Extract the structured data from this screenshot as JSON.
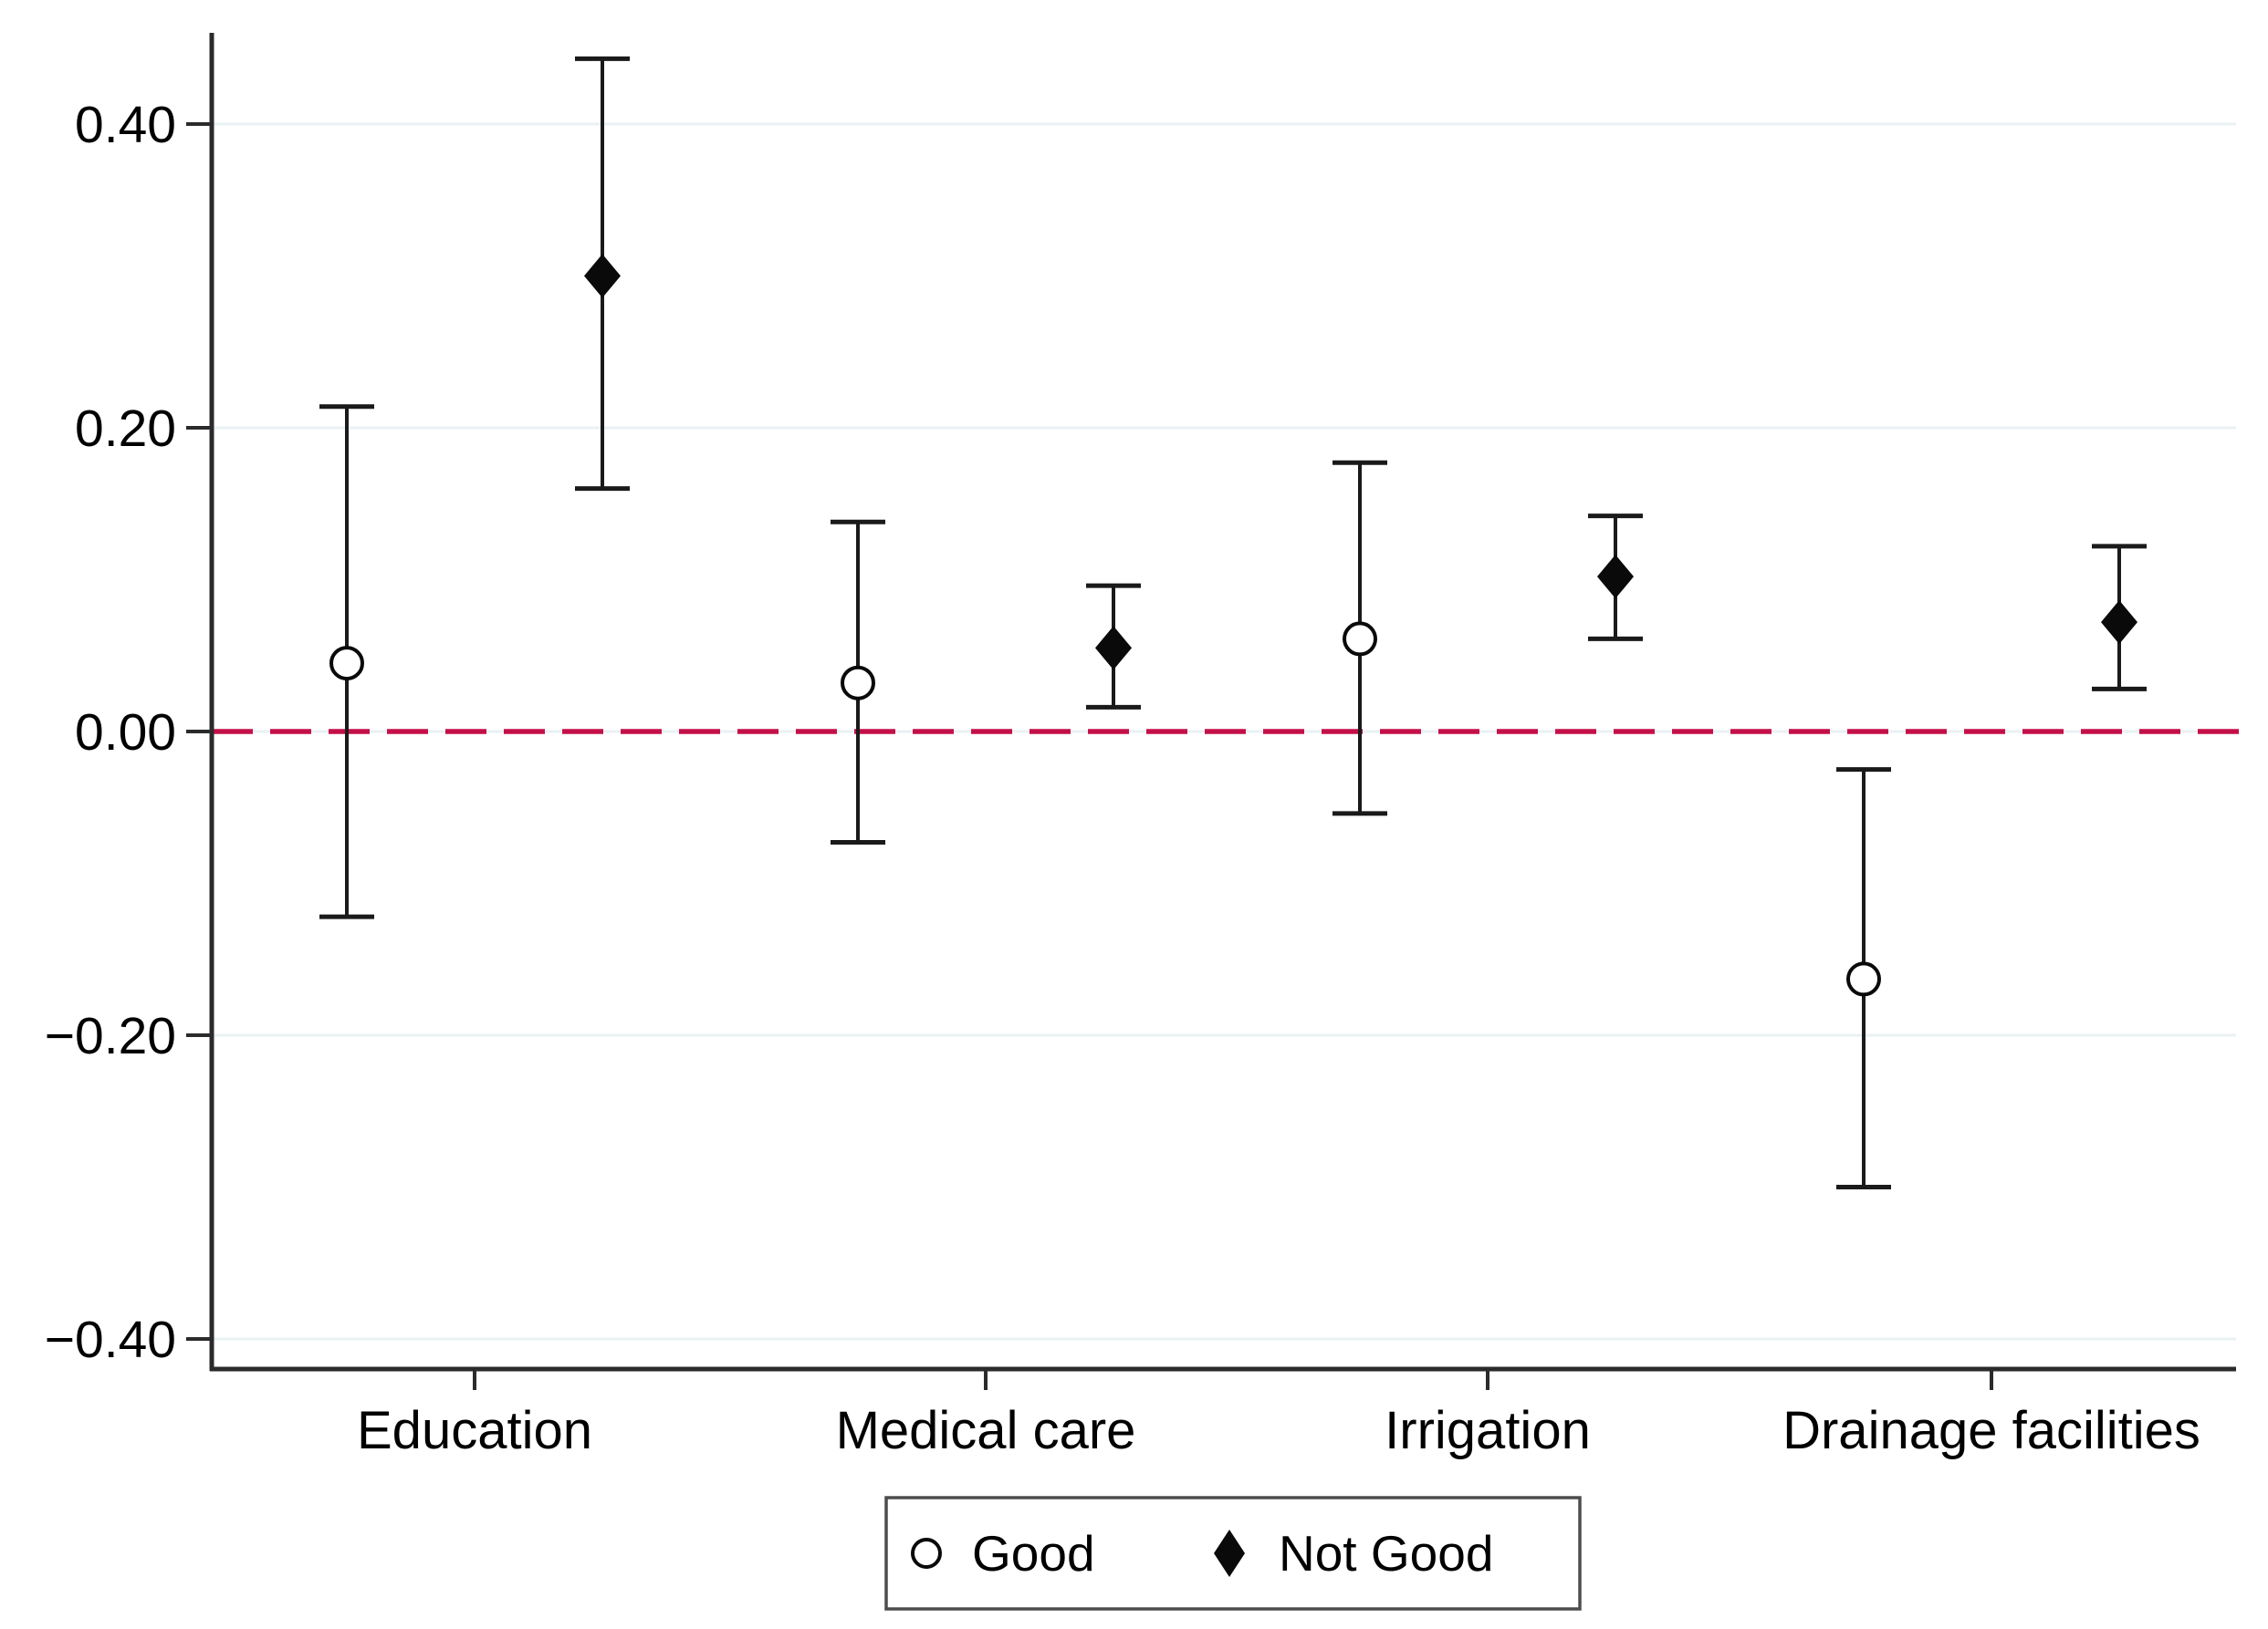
{
  "chart_data": {
    "type": "scatter",
    "variant": "coefficient-plot-with-confidence-intervals",
    "title": "",
    "xlabel": "",
    "ylabel": "",
    "categories": [
      "Education",
      "Medical care",
      "Irrigation",
      "Drainage facilities"
    ],
    "series": [
      {
        "name": "Good",
        "marker": "open-circle",
        "values": [
          0.045,
          0.032,
          0.061,
          -0.163
        ],
        "ci_low": [
          -0.122,
          -0.073,
          -0.054,
          -0.3
        ],
        "ci_high": [
          0.214,
          0.138,
          0.177,
          -0.025
        ]
      },
      {
        "name": "Not Good",
        "marker": "filled-diamond",
        "values": [
          0.3,
          0.055,
          0.102,
          0.072
        ],
        "ci_low": [
          0.16,
          0.016,
          0.061,
          0.028
        ],
        "ci_high": [
          0.443,
          0.096,
          0.142,
          0.122
        ]
      }
    ],
    "y_axis": {
      "ticks": [
        0.4,
        0.2,
        0.0,
        -0.2,
        -0.4
      ],
      "tick_labels": [
        "0.40",
        "0.20",
        "0.00",
        "−0.20",
        "−0.40"
      ],
      "range": [
        -0.419,
        0.46
      ],
      "grid": true
    },
    "reference_line": {
      "value": 0,
      "style": "dashed"
    },
    "legend": {
      "position": "bottom",
      "entries": [
        "Good",
        "Not Good"
      ]
    },
    "colors": {
      "marker": "#0a0a0a",
      "error_bar": "#1a1a1a",
      "grid": "#e9f2f3",
      "axis": "#2b2b2b",
      "reference_line": "#c41048",
      "legend_border": "#4d4d4d",
      "background": "#ffffff",
      "text": "#000000"
    }
  }
}
